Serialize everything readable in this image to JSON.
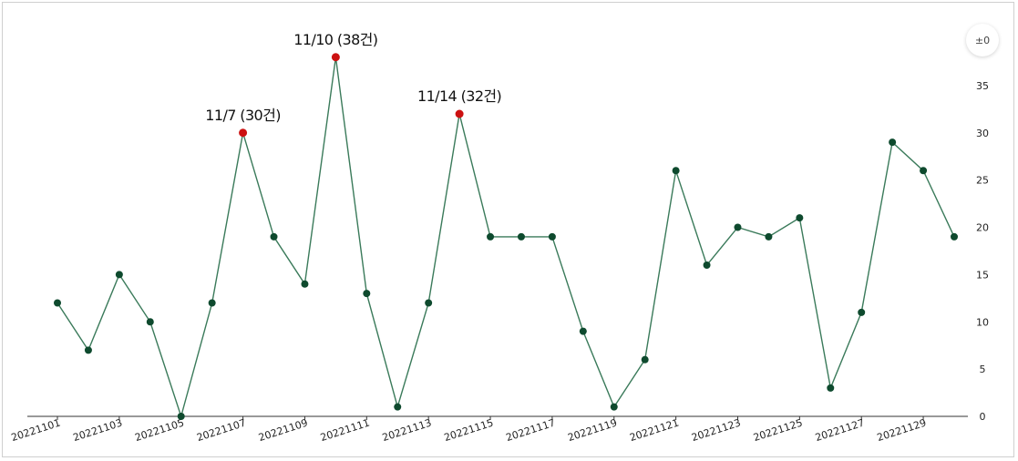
{
  "chart_data": {
    "type": "line",
    "title": "",
    "xlabel": "",
    "ylabel": "",
    "x": [
      "20221101",
      "20221102",
      "20221103",
      "20221104",
      "20221105",
      "20221106",
      "20221107",
      "20221108",
      "20221109",
      "20221110",
      "20221111",
      "20221112",
      "20221113",
      "20221114",
      "20221115",
      "20221116",
      "20221117",
      "20221118",
      "20221119",
      "20221120",
      "20221121",
      "20221122",
      "20221123",
      "20221124",
      "20221125",
      "20221126",
      "20221127",
      "20221128",
      "20221129",
      "20221130"
    ],
    "x_tick_labels": [
      "20221101",
      "20221103",
      "20221105",
      "20221107",
      "20221109",
      "20221111",
      "20221113",
      "20221115",
      "20221117",
      "20221119",
      "20221121",
      "20221123",
      "20221125",
      "20221127",
      "20221129"
    ],
    "series": [
      {
        "values": [
          12,
          7,
          15,
          10,
          0,
          12,
          30,
          19,
          14,
          38,
          13,
          1,
          12,
          32,
          19,
          19,
          19,
          9,
          1,
          6,
          26,
          16,
          20,
          19,
          21,
          3,
          11,
          29,
          26,
          19
        ]
      }
    ],
    "ylim": [
      0,
      40
    ],
    "y_ticks": [
      0,
      5,
      10,
      15,
      20,
      25,
      30,
      35
    ],
    "y_axis_side": "right",
    "grid": false,
    "line_color": "#3a7a5a",
    "point_color": "#0e4a2e",
    "highlight_color": "#cc1111",
    "annotations": [
      {
        "x": "20221107",
        "value": 30,
        "text": "11/7 (30건)"
      },
      {
        "x": "20221110",
        "value": 38,
        "text": "11/10 (38건)"
      },
      {
        "x": "20221114",
        "value": 32,
        "text": "11/14 (32건)"
      }
    ]
  },
  "controls": {
    "zoom_button_label": "±0"
  }
}
